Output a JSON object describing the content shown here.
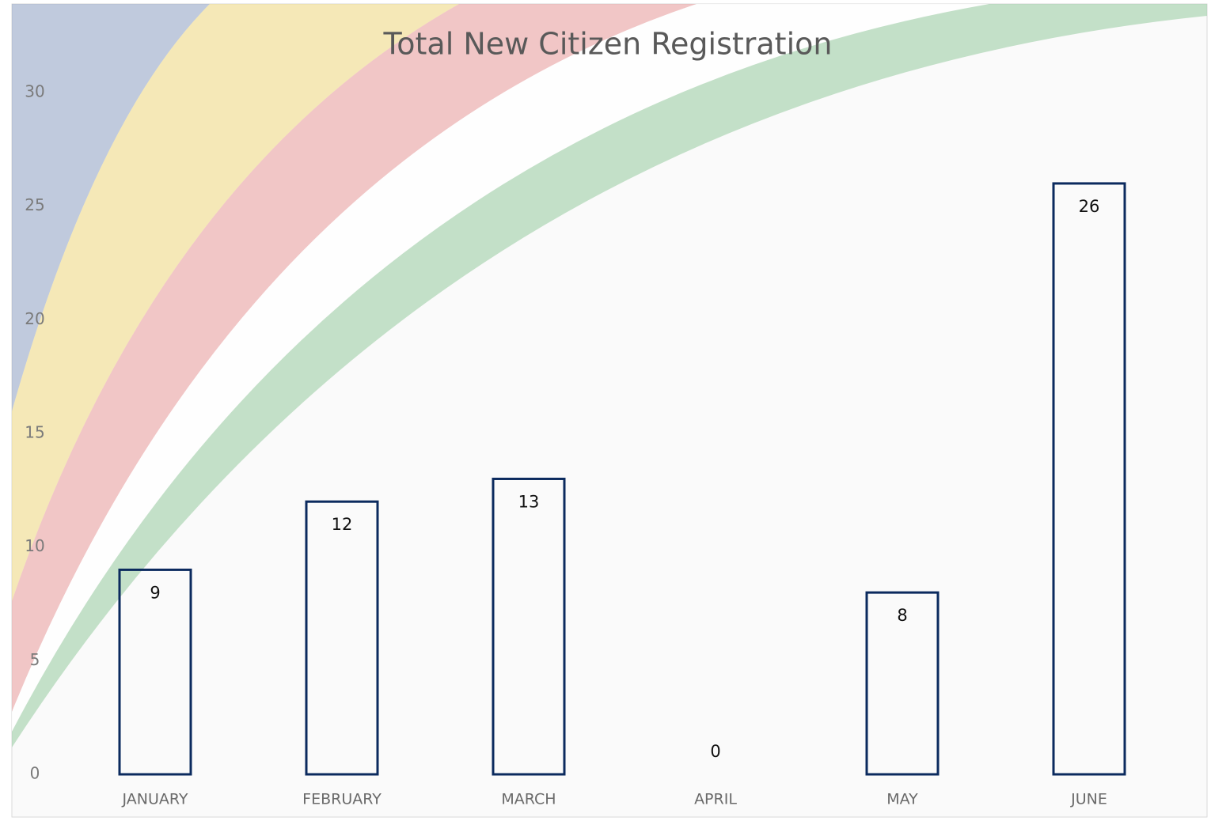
{
  "chart_data": {
    "type": "bar",
    "title": "Total New Citizen Registration",
    "categories": [
      "JANUARY",
      "FEBRUARY",
      "MARCH",
      "APRIL",
      "MAY",
      "JUNE"
    ],
    "values": [
      9,
      12,
      13,
      0,
      8,
      26
    ],
    "color": "#0b2a5e",
    "ylim": [
      0,
      30
    ],
    "yticks": [
      0,
      5,
      10,
      15,
      20,
      25,
      30
    ],
    "grid": false
  }
}
